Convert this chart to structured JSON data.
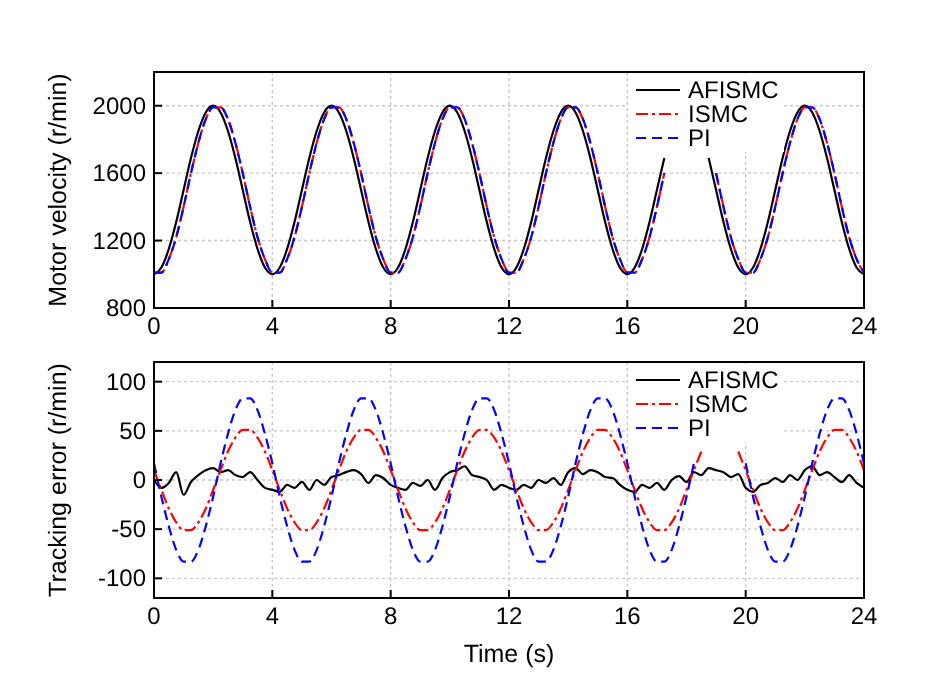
{
  "chart_data": [
    {
      "type": "line",
      "ylabel": "Motor velocity (r/min)",
      "xlim": [
        0,
        24
      ],
      "xticks": [
        0,
        4,
        8,
        12,
        16,
        20,
        24
      ],
      "ylim": [
        800,
        2200
      ],
      "yticks": [
        800,
        1200,
        1600,
        2000
      ],
      "grid": true,
      "legend": "top right",
      "x": [
        0,
        0.25,
        0.5,
        0.75,
        1,
        1.25,
        1.5,
        1.75,
        2,
        2.25,
        2.5,
        2.75,
        3,
        3.25,
        3.5,
        3.75,
        4,
        4.25,
        4.5,
        4.75,
        5,
        5.25,
        5.5,
        5.75,
        6,
        6.25,
        6.5,
        6.75,
        7,
        7.25,
        7.5,
        7.75,
        8,
        8.25,
        8.5,
        8.75,
        9,
        9.25,
        9.5,
        9.75,
        10,
        10.25,
        10.5,
        10.75,
        11,
        11.25,
        11.5,
        11.75,
        12,
        12.25,
        12.5,
        12.75,
        13,
        13.25,
        13.5,
        13.75,
        14,
        14.25,
        14.5,
        14.75,
        15,
        15.25,
        15.5,
        15.75,
        16,
        16.25,
        16.5,
        16.75,
        17,
        17.25,
        17.5,
        17.75,
        18,
        18.25,
        18.5,
        18.75,
        19,
        19.25,
        19.5,
        19.75,
        20,
        20.25,
        20.5,
        20.75,
        21,
        21.25,
        21.5,
        21.75,
        22,
        22.25,
        22.5,
        22.75,
        23,
        23.25,
        23.5,
        23.75,
        24
      ],
      "series": [
        {
          "name": "AFISMC",
          "color": "#000000",
          "line_style": "solid",
          "values": [
            1000,
            1040,
            1150,
            1310,
            1500,
            1690,
            1850,
            1960,
            2000,
            1960,
            1850,
            1690,
            1500,
            1310,
            1150,
            1040,
            1000,
            1040,
            1150,
            1310,
            1500,
            1690,
            1850,
            1960,
            2000,
            1960,
            1850,
            1690,
            1500,
            1310,
            1150,
            1040,
            1000,
            1040,
            1150,
            1310,
            1500,
            1690,
            1850,
            1960,
            2000,
            1960,
            1850,
            1690,
            1500,
            1310,
            1150,
            1040,
            1000,
            1040,
            1150,
            1310,
            1500,
            1690,
            1850,
            1960,
            2000,
            1960,
            1850,
            1690,
            1500,
            1310,
            1150,
            1040,
            1000,
            1040,
            1150,
            1310,
            1500,
            1690,
            null,
            null,
            null,
            null,
            null,
            1690,
            1500,
            1310,
            1150,
            1040,
            1000,
            1040,
            1150,
            1310,
            1500,
            1690,
            1850,
            1960,
            2000,
            1960,
            1850,
            1690,
            1500,
            1310,
            1150,
            1040,
            1000
          ]
        },
        {
          "name": "ISMC",
          "color": "#ff0000",
          "line_style": "dashdot",
          "values": [
            1010,
            1010,
            1090,
            1220,
            1400,
            1600,
            1780,
            1920,
            1990,
            1990,
            1920,
            1780,
            1600,
            1400,
            1220,
            1090,
            1010,
            1010,
            1090,
            1220,
            1400,
            1600,
            1780,
            1920,
            1990,
            1990,
            1920,
            1780,
            1600,
            1400,
            1220,
            1090,
            1010,
            1010,
            1090,
            1220,
            1400,
            1600,
            1780,
            1920,
            1990,
            1990,
            1920,
            1780,
            1600,
            1400,
            1220,
            1090,
            1010,
            1010,
            1090,
            1220,
            1400,
            1600,
            1780,
            1920,
            1990,
            1990,
            1920,
            1780,
            1600,
            1400,
            1220,
            1090,
            1010,
            1010,
            1090,
            1220,
            1400,
            1600,
            null,
            null,
            null,
            null,
            null,
            null,
            1600,
            1400,
            1220,
            1090,
            1010,
            1010,
            1090,
            1220,
            1400,
            1600,
            1780,
            1920,
            1990,
            1990,
            1920,
            1780,
            1600,
            1400,
            1220,
            1090,
            1010
          ]
        },
        {
          "name": "PI",
          "color": "#0000ff",
          "line_style": "dashed",
          "values": [
            1010,
            1010,
            1090,
            1220,
            1400,
            1600,
            1780,
            1920,
            1990,
            1990,
            1920,
            1780,
            1600,
            1400,
            1220,
            1090,
            1010,
            1010,
            1090,
            1220,
            1400,
            1600,
            1780,
            1920,
            1990,
            1990,
            1920,
            1780,
            1600,
            1400,
            1220,
            1090,
            1010,
            1010,
            1090,
            1220,
            1400,
            1600,
            1780,
            1920,
            1990,
            1990,
            1920,
            1780,
            1600,
            1400,
            1220,
            1090,
            1010,
            1010,
            1090,
            1220,
            1400,
            1600,
            1780,
            1920,
            1990,
            1990,
            1920,
            1780,
            1600,
            1400,
            1220,
            1090,
            1010,
            1010,
            1090,
            1220,
            1400,
            1600,
            null,
            null,
            null,
            null,
            null,
            null,
            1600,
            1400,
            1220,
            1090,
            1010,
            1010,
            1090,
            1220,
            1400,
            1600,
            1780,
            1920,
            1990,
            1990,
            1920,
            1780,
            1600,
            1400,
            1220,
            1090,
            1010
          ]
        }
      ]
    },
    {
      "type": "line",
      "xlabel": "Time (s)",
      "ylabel": "Tracking error (r/min)",
      "xlim": [
        0,
        24
      ],
      "xticks": [
        0,
        4,
        8,
        12,
        16,
        20,
        24
      ],
      "ylim": [
        -120,
        120
      ],
      "yticks": [
        -100,
        -50,
        0,
        50,
        100
      ],
      "grid": true,
      "legend": "top right",
      "x": [
        0,
        0.25,
        0.5,
        0.75,
        1,
        1.25,
        1.5,
        1.75,
        2,
        2.25,
        2.5,
        2.75,
        3,
        3.25,
        3.5,
        3.75,
        4,
        4.25,
        4.5,
        4.75,
        5,
        5.25,
        5.5,
        5.75,
        6,
        6.25,
        6.5,
        6.75,
        7,
        7.25,
        7.5,
        7.75,
        8,
        8.25,
        8.5,
        8.75,
        9,
        9.25,
        9.5,
        9.75,
        10,
        10.25,
        10.5,
        10.75,
        11,
        11.25,
        11.5,
        11.75,
        12,
        12.25,
        12.5,
        12.75,
        13,
        13.25,
        13.5,
        13.75,
        14,
        14.25,
        14.5,
        14.75,
        15,
        15.25,
        15.5,
        15.75,
        16,
        16.25,
        16.5,
        16.75,
        17,
        17.25,
        17.5,
        17.75,
        18,
        18.25,
        18.5,
        18.75,
        19,
        19.25,
        19.5,
        19.75,
        20,
        20.25,
        20.5,
        20.75,
        21,
        21.25,
        21.5,
        21.75,
        22,
        22.25,
        22.5,
        22.75,
        23,
        23.25,
        23.5,
        23.75,
        24
      ],
      "series": [
        {
          "name": "AFISMC",
          "color": "#000000",
          "line_style": "solid",
          "values": [
            0,
            -8,
            -3,
            8,
            -15,
            -2,
            5,
            10,
            12,
            8,
            10,
            5,
            3,
            8,
            0,
            -8,
            -10,
            -12,
            -5,
            -8,
            -2,
            -10,
            0,
            -5,
            3,
            5,
            8,
            10,
            6,
            -3,
            5,
            2,
            -5,
            -8,
            -10,
            -3,
            -6,
            0,
            -10,
            2,
            8,
            10,
            14,
            5,
            3,
            0,
            -10,
            -5,
            -8,
            -10,
            -5,
            -8,
            0,
            -3,
            2,
            -5,
            8,
            12,
            6,
            10,
            8,
            3,
            2,
            -5,
            -10,
            -12,
            -5,
            -8,
            -3,
            -10,
            0,
            4,
            -2,
            8,
            5,
            12,
            10,
            8,
            3,
            6,
            -8,
            -12,
            -5,
            -3,
            2,
            -2,
            5,
            0,
            10,
            14,
            5,
            8,
            3,
            -2,
            5,
            -3,
            -8
          ]
        },
        {
          "name": "ISMC",
          "color": "#ff0000",
          "line_style": "dashdot",
          "values": [
            10,
            -10,
            -29,
            -43,
            -51,
            -51,
            -43,
            -29,
            -10,
            10,
            29,
            43,
            51,
            51,
            43,
            29,
            10,
            -10,
            -29,
            -43,
            -51,
            -51,
            -43,
            -29,
            -10,
            10,
            29,
            43,
            51,
            51,
            43,
            29,
            10,
            -10,
            -29,
            -43,
            -51,
            -51,
            -43,
            -29,
            -10,
            10,
            29,
            43,
            51,
            51,
            43,
            29,
            10,
            -10,
            -29,
            -43,
            -51,
            -51,
            -43,
            -29,
            -10,
            10,
            29,
            43,
            51,
            51,
            43,
            29,
            10,
            -10,
            -29,
            -43,
            -51,
            -51,
            -43,
            -29,
            -10,
            10,
            29,
            null,
            null,
            null,
            null,
            29,
            10,
            -10,
            -29,
            -43,
            -51,
            -51,
            -43,
            -29,
            -10,
            10,
            29,
            43,
            51,
            51,
            43,
            29,
            10
          ]
        },
        {
          "name": "PI",
          "color": "#0000ff",
          "line_style": "dashed",
          "values": [
            17,
            -17,
            -47,
            -71,
            -83,
            -83,
            -71,
            -47,
            -17,
            17,
            47,
            71,
            83,
            83,
            71,
            47,
            17,
            -17,
            -47,
            -71,
            -83,
            -83,
            -71,
            -47,
            -17,
            17,
            47,
            71,
            83,
            83,
            71,
            47,
            17,
            -17,
            -47,
            -71,
            -83,
            -83,
            -71,
            -47,
            -17,
            17,
            47,
            71,
            83,
            83,
            71,
            47,
            17,
            -17,
            -47,
            -71,
            -83,
            -83,
            -71,
            -47,
            -17,
            17,
            47,
            71,
            83,
            83,
            71,
            47,
            17,
            -17,
            -47,
            -71,
            -83,
            -83,
            -71,
            -47,
            -17,
            17,
            null,
            null,
            null,
            null,
            null,
            null,
            17,
            -17,
            -47,
            -71,
            -83,
            -83,
            -71,
            -47,
            -17,
            17,
            47,
            71,
            83,
            83,
            71,
            47,
            17
          ]
        }
      ]
    }
  ]
}
